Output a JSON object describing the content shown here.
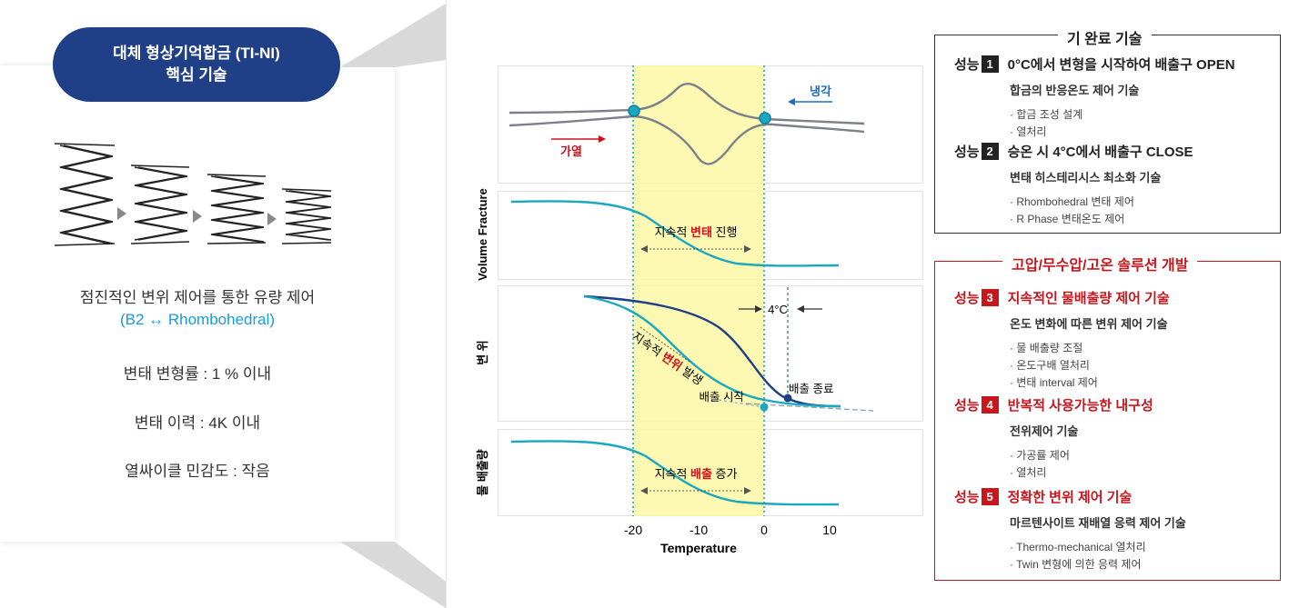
{
  "left": {
    "title_line1": "대체 형상기억합금 (TI-NI)",
    "title_line2": "핵심 기술",
    "desc_line1": "점진적인 변위 제어를 통한 유량 제어",
    "desc_line2": "(B2 ↔ Rhombohedral)",
    "spec1": "변태 변형률 : 1 % 이내",
    "spec2": "변태 이력 : 4K 이내",
    "spec3": "열싸이클 민감도 : 작음"
  },
  "chart": {
    "xlabel": "Temperature",
    "x_ticks": [
      "-20",
      "-10",
      "0",
      "10"
    ],
    "ylabels": [
      "Volume Fracture",
      "변 위",
      "물 배출량"
    ],
    "cooling": "냉각",
    "heating": "가열",
    "vf_pre": "지속적 ",
    "vf_hi": "변태",
    "vf_post": " 진행",
    "disp_pre": "지속적 ",
    "disp_hi": "변위",
    "disp_post": " 발생",
    "delta": "4°C",
    "start": "배출 시작",
    "end": "배출 종료",
    "wo_pre": "지속적 ",
    "wo_hi": "배출",
    "wo_post": " 증가",
    "colors": {
      "highlight": "#fdf8a6",
      "teal": "#1aa8c0",
      "navy": "#1f3f86",
      "red": "#d0101b",
      "gray": "#7b8089"
    }
  },
  "completed": {
    "title": "기 완료 기술",
    "items": [
      {
        "label": "성능",
        "num": "1",
        "head": "0°C에서 변형을 시작하여 배출구  OPEN",
        "sub": "합금의 반응온도 제어 기술",
        "bullets": [
          "· 합금 조성 설계",
          "· 열처리"
        ]
      },
      {
        "label": "성능",
        "num": "2",
        "head": "승온 시 4°C에서 배출구 CLOSE",
        "sub": "변태 히스테리시스 최소화 기술",
        "bullets": [
          "· Rhombohedral 변태 제어",
          "· R Phase 변태온도 제어"
        ]
      }
    ]
  },
  "development": {
    "title": "고압/무수압/고온 솔루션 개발",
    "items": [
      {
        "label": "성능",
        "num": "3",
        "head": "지속적인 물배출량 제어 기술",
        "sub": "온도 변화에 따른 변위 제어 기술",
        "bullets": [
          "· 물 배출량 조절",
          "· 온도구배 열처리",
          "· 변태 interval 제어"
        ]
      },
      {
        "label": "성능",
        "num": "4",
        "head": "반복적 사용가능한 내구성",
        "sub": "전위제어 기술",
        "bullets": [
          "· 가공률 제어",
          "· 열처리"
        ]
      },
      {
        "label": "성능",
        "num": "5",
        "head": "정확한 변위 제어 기술",
        "sub": "마르텐사이트 재배열 응력 제어 기술",
        "bullets": [
          "· Thermo-mechanical 열처리",
          "· Twin 변형에 의한 응력 제어"
        ]
      }
    ]
  }
}
